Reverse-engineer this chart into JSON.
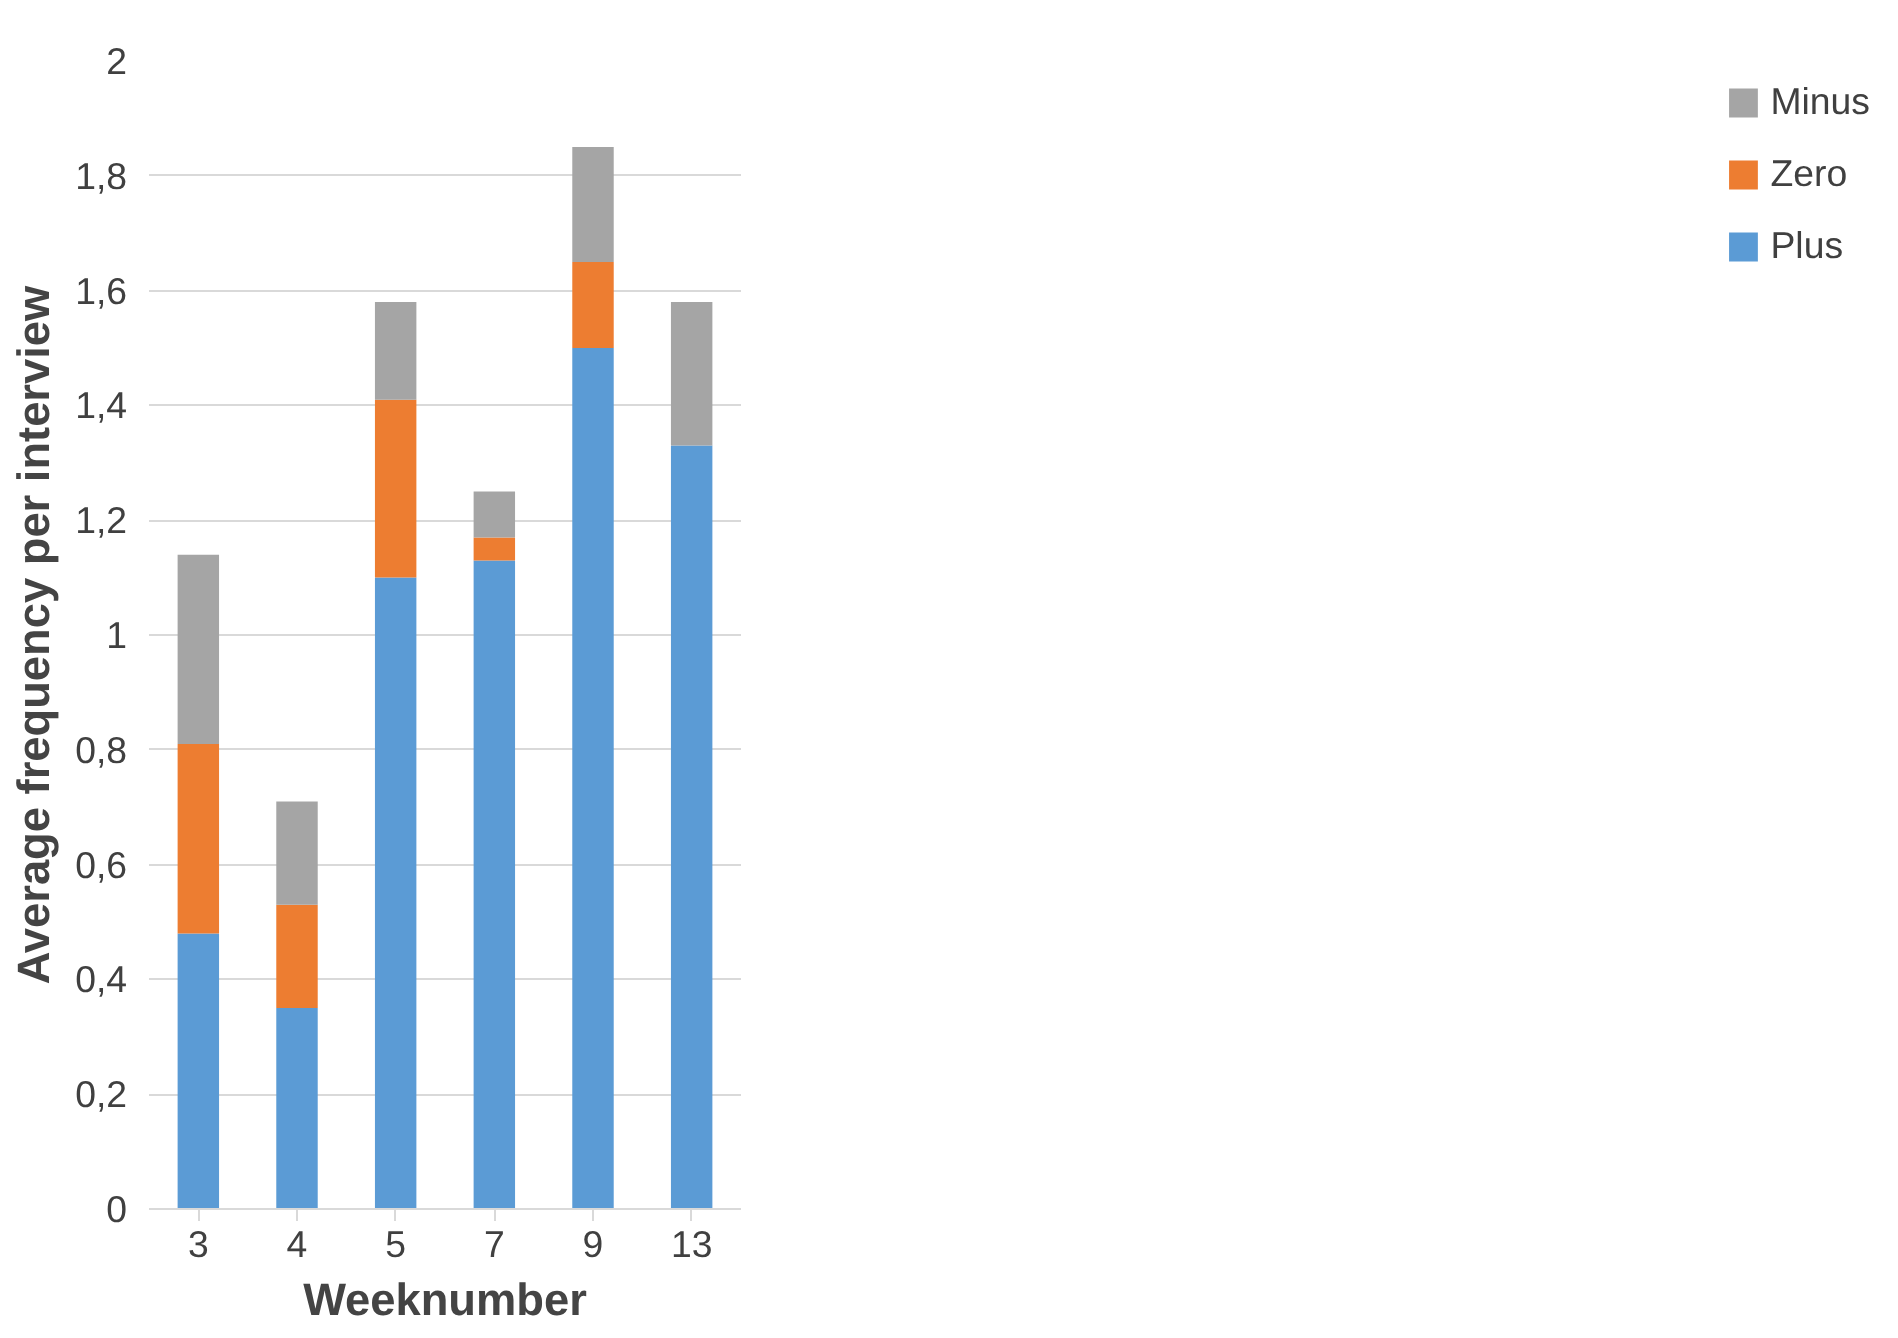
{
  "chart_data": {
    "type": "bar",
    "stacked": true,
    "xlabel": "Weeknumber",
    "ylabel": "Average frequency per interview",
    "categories": [
      "3",
      "4",
      "5",
      "7",
      "9",
      "13"
    ],
    "series": [
      {
        "name": "Plus",
        "color": "#5b9bd5",
        "values": [
          0.48,
          0.35,
          1.1,
          1.13,
          1.5,
          1.33
        ]
      },
      {
        "name": "Zero",
        "color": "#ed7d31",
        "values": [
          0.33,
          0.18,
          0.31,
          0.04,
          0.15,
          0
        ]
      },
      {
        "name": "Minus",
        "color": "#a5a5a5",
        "values": [
          0.33,
          0.18,
          0.17,
          0.08,
          0.2,
          0.25
        ]
      }
    ],
    "ylim": [
      0,
      2
    ],
    "yticks": [
      0,
      {
        "value": 0.2,
        "label": "0,2"
      },
      {
        "value": 0.4,
        "label": "0,4"
      },
      {
        "value": 0.6,
        "label": "0,6"
      },
      {
        "value": 0.8,
        "label": "0,8"
      },
      1,
      {
        "value": 1.2,
        "label": "1,2"
      },
      {
        "value": 1.4,
        "label": "1,4"
      },
      {
        "value": 1.6,
        "label": "1,6"
      },
      {
        "value": 1.8,
        "label": "1,8"
      },
      2
    ],
    "grid": "y",
    "legend": "right"
  }
}
